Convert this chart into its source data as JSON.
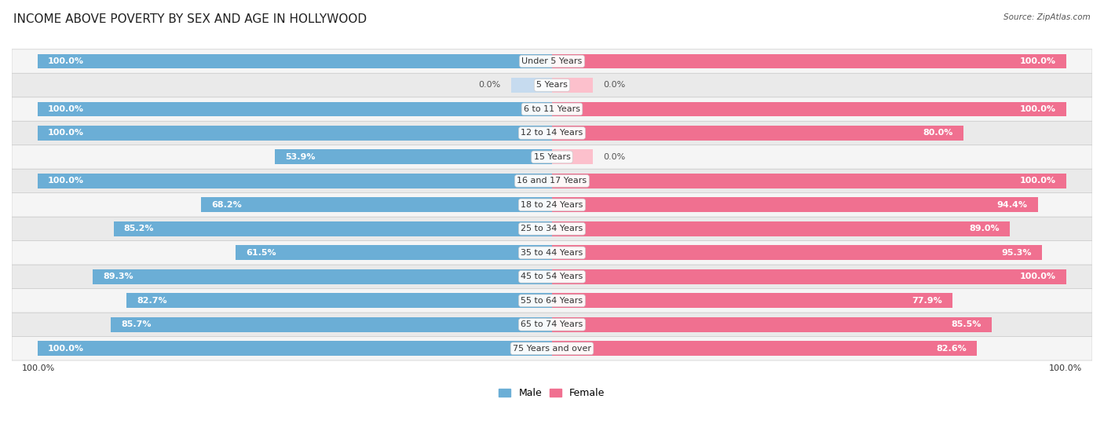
{
  "title": "INCOME ABOVE POVERTY BY SEX AND AGE IN HOLLYWOOD",
  "source": "Source: ZipAtlas.com",
  "categories": [
    "Under 5 Years",
    "5 Years",
    "6 to 11 Years",
    "12 to 14 Years",
    "15 Years",
    "16 and 17 Years",
    "18 to 24 Years",
    "25 to 34 Years",
    "35 to 44 Years",
    "45 to 54 Years",
    "55 to 64 Years",
    "65 to 74 Years",
    "75 Years and over"
  ],
  "male": [
    100.0,
    0.0,
    100.0,
    100.0,
    53.9,
    100.0,
    68.2,
    85.2,
    61.5,
    89.3,
    82.7,
    85.7,
    100.0
  ],
  "female": [
    100.0,
    0.0,
    100.0,
    80.0,
    0.0,
    100.0,
    94.4,
    89.0,
    95.3,
    100.0,
    77.9,
    85.5,
    82.6
  ],
  "male_color": "#6baed6",
  "female_color": "#f07090",
  "male_light_color": "#c6dbef",
  "female_light_color": "#fcc0cc",
  "row_color_odd": "#f7f7f7",
  "row_color_even": "#eeeeee",
  "row_border_color": "#dddddd",
  "title_fontsize": 11,
  "label_fontsize": 8,
  "value_fontsize": 8,
  "bar_height": 0.62,
  "x_axis_label_left": "100.0%",
  "x_axis_label_right": "100.0%"
}
